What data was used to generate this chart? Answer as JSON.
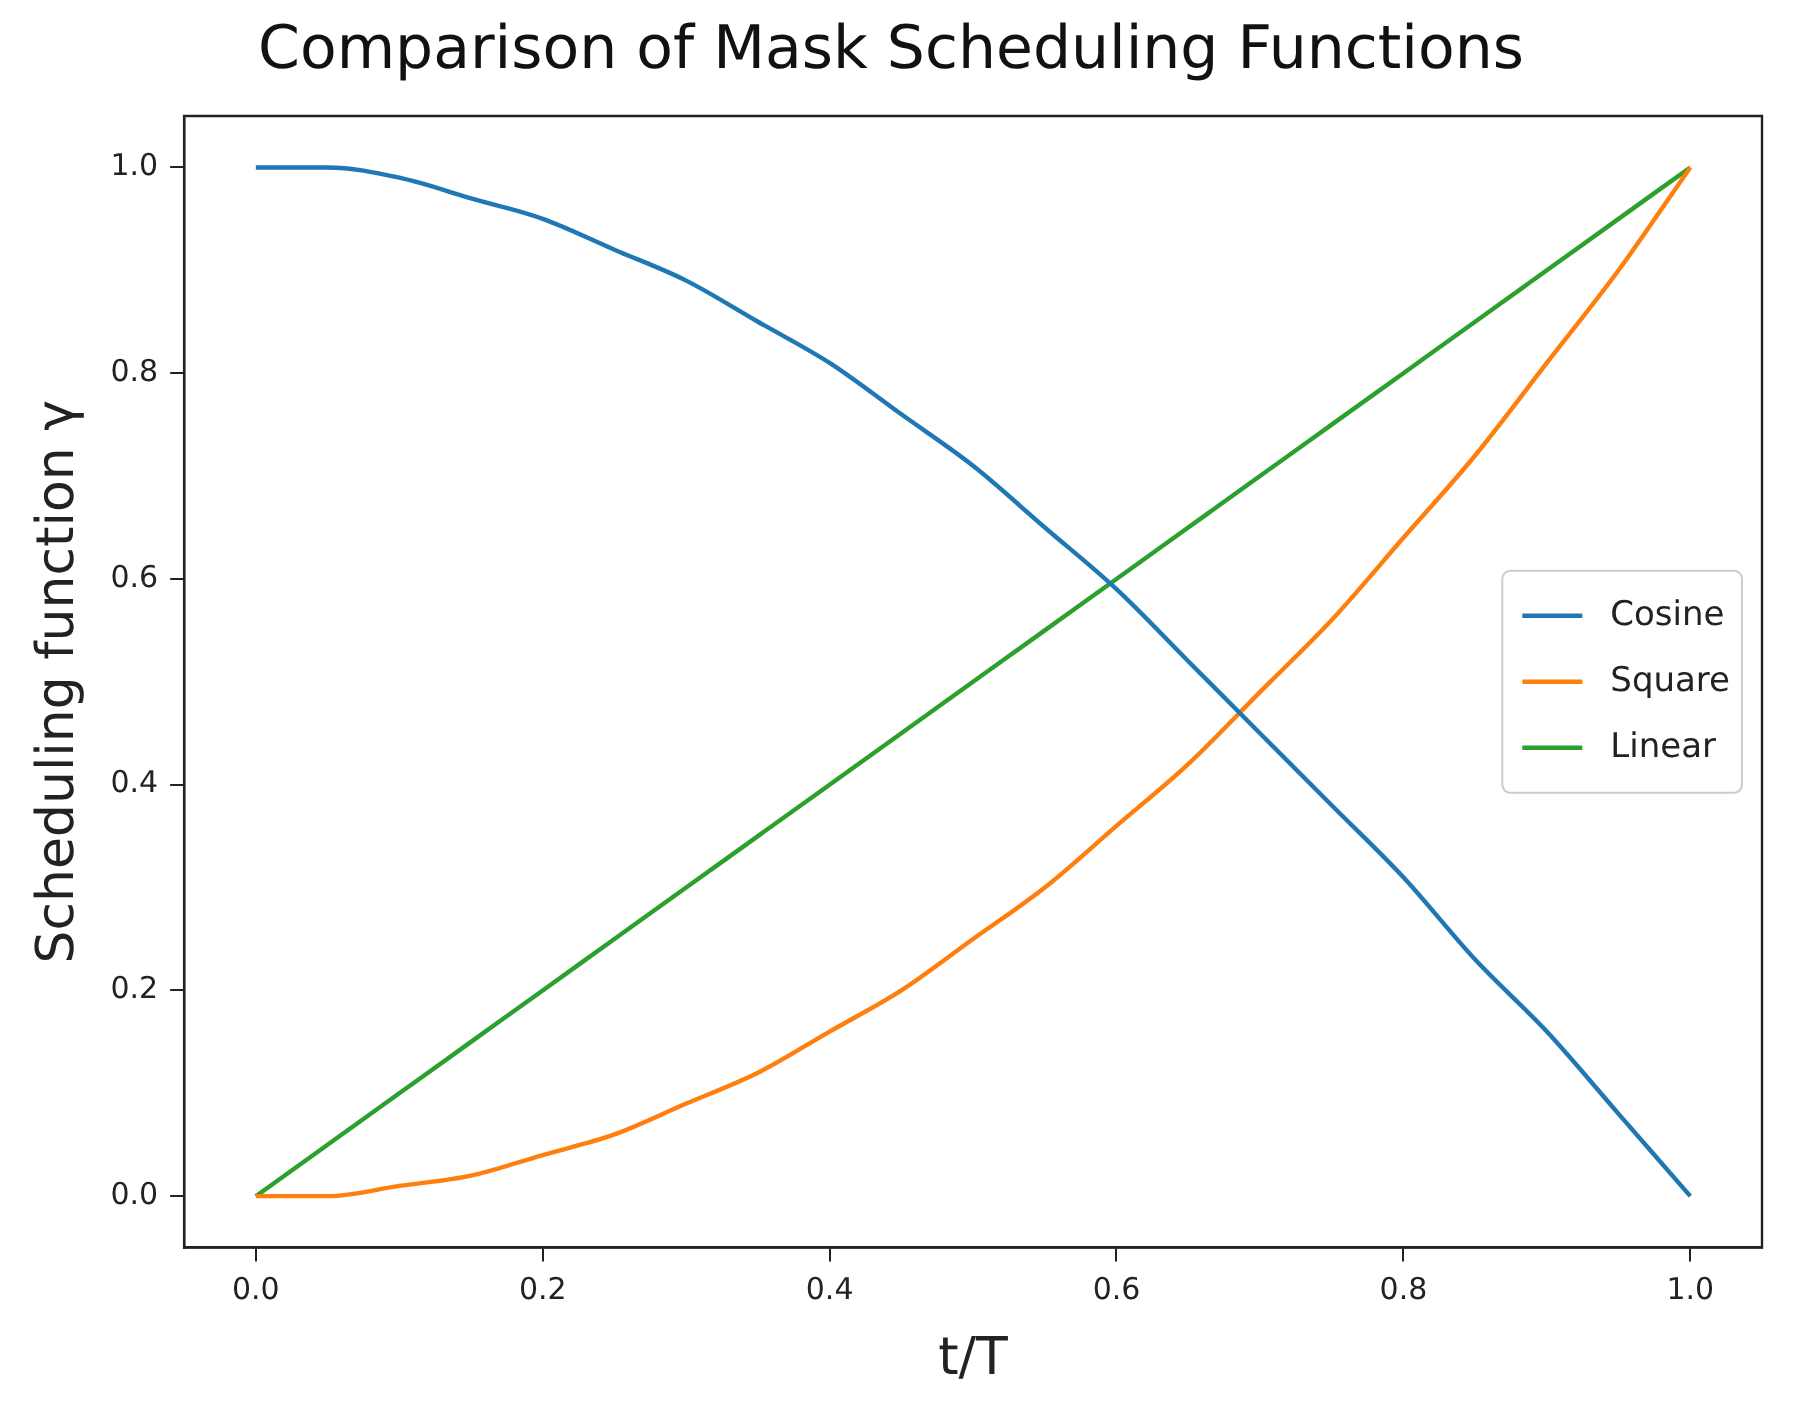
{
  "chart_data": {
    "type": "line",
    "title": "Comparison of Mask Scheduling Functions",
    "xlabel": "t/T",
    "ylabel": "Scheduling function γ",
    "x": [
      0,
      0.05,
      0.1,
      0.15,
      0.2,
      0.25,
      0.3,
      0.35,
      0.4,
      0.45,
      0.5,
      0.55,
      0.6,
      0.65,
      0.7,
      0.75,
      0.8,
      0.85,
      0.9,
      0.95,
      1
    ],
    "series": [
      {
        "name": "Cosine",
        "color": "#1f77b4",
        "values": [
          1,
          1.0,
          0.99,
          0.97,
          0.95,
          0.92,
          0.89,
          0.85,
          0.81,
          0.76,
          0.71,
          0.65,
          0.59,
          0.52,
          0.45,
          0.38,
          0.31,
          0.23,
          0.16,
          0.08,
          0
        ]
      },
      {
        "name": "Square",
        "color": "#ff7f0e",
        "values": [
          0,
          0,
          0.01,
          0.02,
          0.04,
          0.06,
          0.09,
          0.12,
          0.16,
          0.2,
          0.25,
          0.3,
          0.36,
          0.42,
          0.49,
          0.56,
          0.64,
          0.72,
          0.81,
          0.9,
          1
        ]
      },
      {
        "name": "Linear",
        "color": "#2ca02c",
        "values": [
          0,
          0.05,
          0.1,
          0.15,
          0.2,
          0.25,
          0.3,
          0.35,
          0.4,
          0.45,
          0.5,
          0.55,
          0.6,
          0.65,
          0.7,
          0.75,
          0.8,
          0.85,
          0.9,
          0.95,
          1
        ]
      }
    ],
    "xlim": [
      -0.05,
      1.05
    ],
    "ylim": [
      -0.05,
      1.05
    ],
    "xticks": [
      {
        "value": 0,
        "label": "0.0"
      },
      0.2,
      0.4,
      0.6,
      0.8,
      {
        "value": 1,
        "label": "1.0"
      }
    ],
    "yticks": [
      {
        "value": 0,
        "label": "0.0"
      },
      0.2,
      0.4,
      0.6,
      0.8,
      {
        "value": 1,
        "label": "1.0"
      }
    ],
    "grid": false,
    "legend": "center right",
    "marker": "none",
    "line_style": "solid"
  }
}
